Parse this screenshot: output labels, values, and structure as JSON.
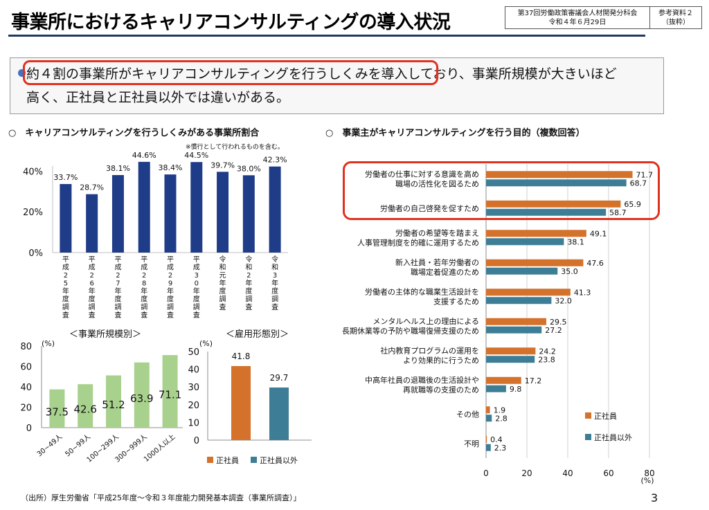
{
  "header": {
    "title": "事業所におけるキャリアコンサルティングの導入状況",
    "meta_line1": "第37回労働政策審議会人材開発分科会",
    "meta_line2": "令和４年６月29日",
    "ref_line1": "参考資料２",
    "ref_line2": "（抜粋）"
  },
  "summary": {
    "line1": "約４割の事業所がキャリアコンサルティングを行うしくみを導入しており、事業所規模が大きいほど",
    "line2": "高く、正社員と正社員以外では違いがある。"
  },
  "left_section": {
    "title": "○　キャリアコンサルティングを行うしくみがある事業所割合",
    "note": "※慣行として行われるものを含む。"
  },
  "right_section": {
    "title": "○　事業主がキャリアコンサルティングを行う目的（複数回答）"
  },
  "size_title": "＜事業所規模別＞",
  "type_title": "＜雇用形態別＞",
  "colors": {
    "navy": "#1f3c88",
    "green": "#a9d18e",
    "orange": "#d4712a",
    "teal": "#3e7d96",
    "highlight": "#e0301e"
  },
  "chart_data": [
    {
      "type": "bar",
      "categories": [
        "平成25年度調査",
        "平成26年度調査",
        "平成27年度調査",
        "平成28年度調査",
        "平成29年度調査",
        "平成30年度調査",
        "令和元年度調査",
        "令和2年度調査",
        "令和3年度調査"
      ],
      "value_labels": [
        "33.7%",
        "28.7%",
        "38.1%",
        "44.6%",
        "38.4%",
        "44.5%",
        "39.7%",
        "38.0%",
        "42.3%"
      ],
      "values": [
        33.7,
        28.7,
        38.1,
        44.6,
        38.4,
        44.5,
        39.7,
        38.0,
        42.3
      ],
      "ylim": [
        0,
        50
      ],
      "yticks": [
        "0%",
        "20%",
        "40%"
      ],
      "grid": false
    },
    {
      "type": "bar",
      "categories": [
        "30~49人",
        "50~99人",
        "100~299人",
        "300~999人",
        "1000人以上"
      ],
      "values": [
        37.5,
        42.6,
        51.2,
        63.9,
        71.1
      ],
      "ylim": [
        0,
        80
      ],
      "yticks": [
        "0",
        "20",
        "40",
        "60",
        "80"
      ],
      "unit": "(%)"
    },
    {
      "type": "bar",
      "categories": [
        "正社員",
        "正社員以外"
      ],
      "values": [
        41.8,
        29.7
      ],
      "ylim": [
        0,
        50
      ],
      "yticks": [
        "0",
        "10",
        "20",
        "30",
        "40",
        "50"
      ],
      "unit": "(%)"
    },
    {
      "type": "bar",
      "orientation": "horizontal",
      "categories": [
        [
          "労働者の仕事に対する意識を高め",
          "職場の活性化を図るため"
        ],
        [
          "労働者の自己啓発を促すため"
        ],
        [
          "労働者の希望等を踏まえ",
          "人事管理制度を的確に運用するため"
        ],
        [
          "新入社員・若年労働者の",
          "職場定着促進のため"
        ],
        [
          "労働者の主体的な職業生活設計を",
          "支援するため"
        ],
        [
          "メンタルヘルス上の理由による",
          "長期休業等の予防や職場復帰支援のため"
        ],
        [
          "社内教育プログラムの運用を",
          "より効果的に行うため"
        ],
        [
          "中高年社員の退職後の生活設計や",
          "再就職等の支援のため"
        ],
        [
          "その他"
        ],
        [
          "不明"
        ]
      ],
      "series": [
        {
          "name": "正社員",
          "values": [
            71.7,
            65.9,
            49.1,
            47.6,
            41.3,
            29.5,
            24.2,
            17.2,
            1.9,
            0.4
          ]
        },
        {
          "name": "正社員以外",
          "values": [
            68.7,
            58.7,
            38.1,
            35.0,
            32.0,
            27.2,
            23.8,
            9.8,
            2.8,
            2.3
          ]
        }
      ],
      "xlim": [
        0,
        80
      ],
      "xticks": [
        "0",
        "20",
        "40",
        "60",
        "80"
      ],
      "unit": "(%)",
      "legend": "bottom-right"
    }
  ],
  "source": "（出所）厚生労働省「平成25年度～令和３年度能力開発基本調査（事業所調査）」",
  "page_number": "3"
}
